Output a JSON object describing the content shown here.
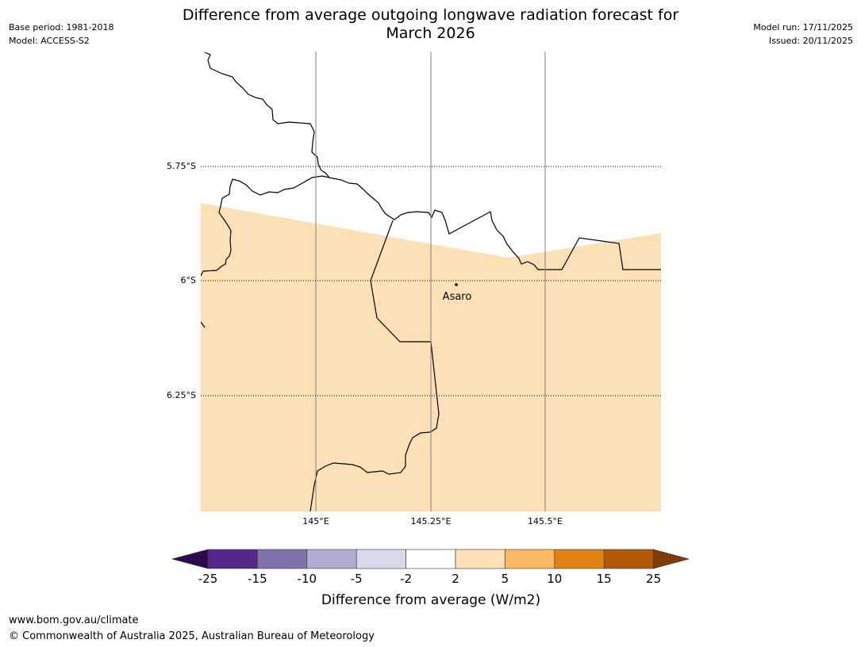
{
  "header": {
    "title_line1": "Difference from average outgoing longwave radiation forecast for",
    "title_line2": "March 2026",
    "base_period": "Base period: 1981-2018",
    "model": "Model: ACCESS-S2",
    "model_run": "Model run: 17/11/2025",
    "issued": "Issued: 20/11/2025"
  },
  "map": {
    "lat_labels": [
      "5.75°S",
      "6°S",
      "6.25°S"
    ],
    "lon_labels": [
      "145°E",
      "145.25°E",
      "145.5°E"
    ],
    "place": {
      "name": "Asaro",
      "lat": -6.01,
      "lon": 145.3
    },
    "shaded_category": "2 to 5",
    "shaded_color": "#fde0b6"
  },
  "legend": {
    "title": "Difference from average (W/m2)",
    "ticks": [
      "-25",
      "-15",
      "-10",
      "-5",
      "-2",
      "2",
      "5",
      "10",
      "15",
      "25"
    ],
    "colors": [
      "#2d0a4e",
      "#542788",
      "#8073ac",
      "#b2abd2",
      "#d8daeb",
      "#ffffff",
      "#fde0b6",
      "#fdb863",
      "#e08214",
      "#b35806",
      "#7f3b08"
    ]
  },
  "footer": {
    "url": "www.bom.gov.au/climate",
    "copyright": "© Commonwealth of Australia 2025, Australian Bureau of Meteorology"
  }
}
